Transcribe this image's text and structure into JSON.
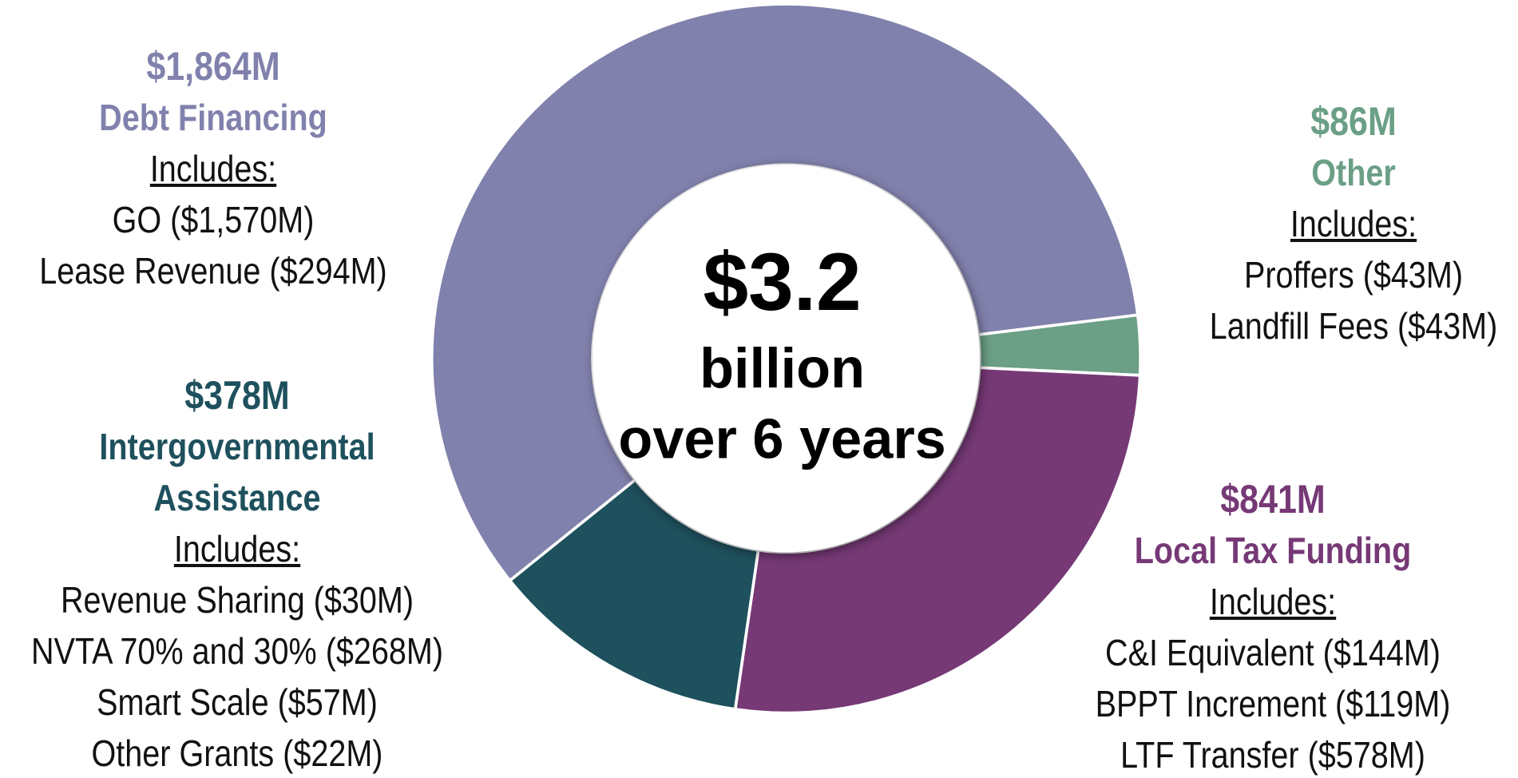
{
  "chart_data": {
    "type": "donut",
    "categories": [
      "Debt Financing",
      "Other",
      "Local Tax Funding",
      "Intergovernmental Assistance"
    ],
    "values": [
      1864,
      86,
      841,
      378
    ],
    "value_labels": [
      "$1,864M",
      "$86M",
      "$841M",
      "$378M"
    ],
    "colors": [
      "#8181ad",
      "#6b9f86",
      "#763976",
      "#1e505d"
    ],
    "details": [
      {
        "heading": "Includes:",
        "items": [
          "GO ($1,570M)",
          "Lease Revenue ($294M)"
        ]
      },
      {
        "heading": "Includes:",
        "items": [
          "Proffers ($43M)",
          "Landfill Fees ($43M)"
        ]
      },
      {
        "heading": "Includes:",
        "items": [
          "C&I Equivalent ($144M)",
          "BPPT Increment ($119M)",
          "LTF Transfer ($578M)"
        ]
      },
      {
        "heading": "Includes:",
        "items": [
          "Revenue Sharing ($30M)",
          "NVTA 70% and 30% ($268M)",
          "Smart Scale ($57M)",
          "Other Grants ($22M)"
        ]
      }
    ],
    "center_text": {
      "value": "$3.2",
      "lines": [
        "billion",
        "over 6 years"
      ]
    }
  }
}
